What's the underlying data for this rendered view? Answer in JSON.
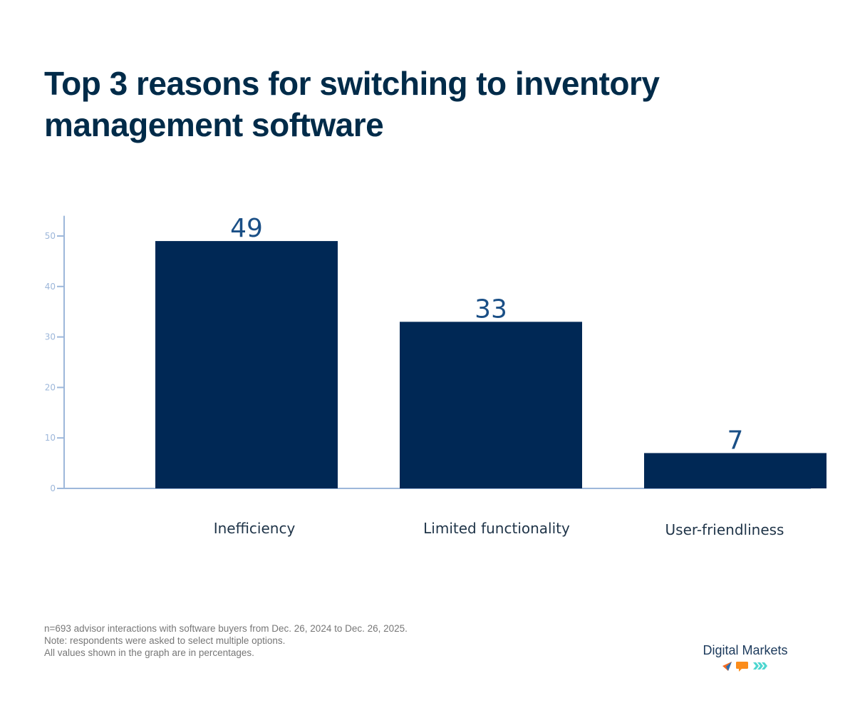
{
  "chart_data": {
    "type": "bar",
    "title": "Top 3 reasons for switching to inventory management software",
    "categories": [
      "Inefficiency",
      "Limited functionality",
      "User-friendliness"
    ],
    "values": [
      49,
      33,
      7
    ],
    "data_labels": [
      "49",
      "33",
      "7"
    ],
    "ylim": [
      0,
      54
    ],
    "yticks": [
      0,
      10,
      20,
      30,
      40,
      50
    ],
    "xlabel": "",
    "ylabel": "",
    "grid": false,
    "bar_color": "#002855",
    "axis_color": "#9db7da",
    "label_color": "#1a4f86"
  },
  "footnote": [
    "n=693 advisor interactions with software buyers from Dec. 26, 2024 to Dec. 26, 2025.",
    "Note: respondents were asked to select multiple options.",
    "All values shown in the graph are in percentages."
  ],
  "logo": {
    "text": "Digital Markets",
    "icons": [
      "paper-plane-icon",
      "speech-bubble-icon",
      "chevrons-icon"
    ],
    "colors": [
      "#f26b21",
      "#fb8c1a",
      "#4dd6d0"
    ]
  }
}
